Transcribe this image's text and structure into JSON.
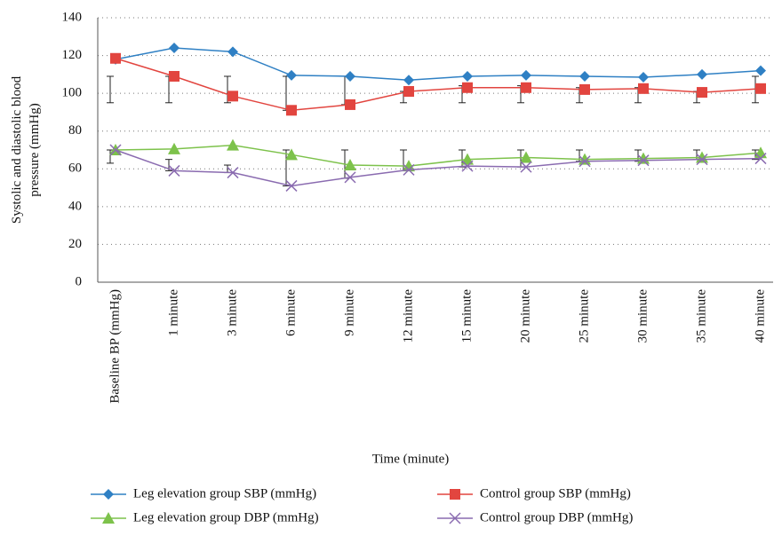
{
  "chart_data": {
    "type": "line",
    "ylabel": "Systolic and diastolic blood pressure (mmHg)",
    "xlabel": "Time (minute)",
    "categories": [
      "Baseline BP (mmHg)",
      "1 minute",
      "3 minute",
      "6 minute",
      "9 minute",
      "12 minute",
      "15 minute",
      "20 minute",
      "25 minute",
      "30 minute",
      "35 minute",
      "40 minute"
    ],
    "ylim": [
      0,
      140
    ],
    "yticks": [
      0,
      20,
      40,
      60,
      80,
      100,
      120,
      140
    ],
    "grid": true,
    "legend": "bottom",
    "series": [
      {
        "name": "Leg elevation group SBP (mmHg)",
        "color": "#2f80c4",
        "marker": "diamond",
        "values": [
          118,
          124,
          122,
          109.5,
          109,
          107,
          109,
          109.5,
          109,
          108.5,
          110,
          112
        ]
      },
      {
        "name": "Control group SBP (mmHg)",
        "color": "#e2453f",
        "marker": "square",
        "values": [
          118.5,
          109,
          98.5,
          91,
          94,
          101,
          103,
          103,
          102,
          102.5,
          100.5,
          102.5
        ]
      },
      {
        "name": "Leg elevation group DBP (mmHg)",
        "color": "#7dc24b",
        "marker": "triangle",
        "values": [
          70,
          70.5,
          72.5,
          67.5,
          62,
          61.5,
          65,
          66,
          65,
          65.5,
          66,
          68.5
        ]
      },
      {
        "name": "Control group DBP (mmHg)",
        "color": "#8a6bb0",
        "marker": "x",
        "values": [
          70,
          59,
          58,
          51,
          55.5,
          59.5,
          61.5,
          61,
          64,
          64.5,
          65,
          65.5
        ]
      }
    ],
    "error_bars": [
      {
        "low": [
          95,
          95,
          95,
          91,
          94,
          95,
          95,
          95,
          95,
          95,
          95,
          95
        ],
        "high": [
          109,
          109,
          109,
          109,
          109,
          101,
          104,
          104,
          103,
          103,
          101,
          109
        ]
      },
      {
        "low": [
          63,
          59,
          58,
          51,
          55,
          59,
          61,
          61,
          64,
          64,
          65,
          65
        ],
        "high": [
          70,
          65,
          62,
          70,
          70,
          70,
          70,
          70,
          70,
          70,
          70,
          70
        ]
      }
    ]
  }
}
